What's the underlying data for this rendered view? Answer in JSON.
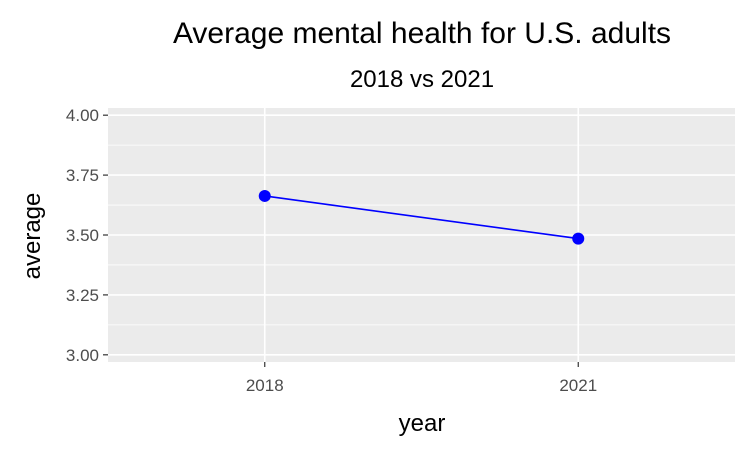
{
  "chart_data": {
    "type": "line",
    "title": "Average mental health for U.S. adults",
    "subtitle": "2018 vs 2021",
    "xlabel": "year",
    "ylabel": "average",
    "categories": [
      "2018",
      "2021"
    ],
    "series": [
      {
        "values": [
          3.663,
          3.485
        ],
        "color": "#0000FF"
      }
    ],
    "ylim": [
      2.97,
      4.03
    ],
    "yticks": [
      3.0,
      3.25,
      3.5,
      3.75,
      4.0
    ],
    "ytick_labels": [
      "3.00",
      "3.25",
      "3.50",
      "3.75",
      "4.00"
    ],
    "grid": true,
    "legend": "none",
    "panel_background": "#EBEBEB",
    "grid_color": "#FFFFFF"
  }
}
